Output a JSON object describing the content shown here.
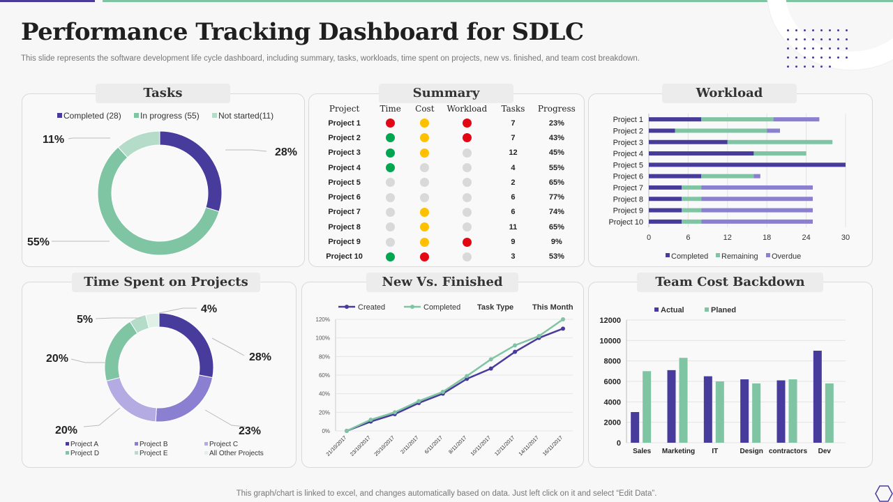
{
  "page": {
    "title": "Performance Tracking Dashboard for SDLC",
    "subtitle": "This slide represents the software development life cycle dashboard, including summary, tasks, workloads, time spent on projects, new vs. finished, and team cost breakdown.",
    "footer": "This graph/chart is linked to excel,  and changes automatically based on data. Just left click on it and select “Edit Data”."
  },
  "colors": {
    "purple": "#473b9b",
    "green": "#7fc4a3",
    "lightgreen": "#b4dcc9",
    "lavender": "#8a7fd0",
    "lilac": "#b3abe2",
    "red": "#e30613",
    "yellow": "#ffc000",
    "darkgreen": "#00a650",
    "grey": "#d9d9d9"
  },
  "chart_data": [
    {
      "id": "tasks",
      "type": "pie",
      "title": "Tasks",
      "legend": [
        "Completed (28)",
        "In progress (55)",
        "Not started(11)"
      ],
      "values": [
        28,
        55,
        11
      ],
      "labels": [
        "28%",
        "55%",
        "11%"
      ]
    },
    {
      "id": "summary",
      "type": "table",
      "title": "Summary",
      "columns": [
        "Project",
        "Time",
        "Cost",
        "Workload",
        "Tasks",
        "Progress"
      ],
      "rows": [
        {
          "project": "Project 1",
          "time": "red",
          "cost": "yellow",
          "workload": "red",
          "tasks": "7",
          "progress": "23%"
        },
        {
          "project": "Project 2",
          "time": "green",
          "cost": "yellow",
          "workload": "red",
          "tasks": "7",
          "progress": "43%"
        },
        {
          "project": "Project 3",
          "time": "green",
          "cost": "yellow",
          "workload": "grey",
          "tasks": "12",
          "progress": "45%"
        },
        {
          "project": "Project 4",
          "time": "green",
          "cost": "grey",
          "workload": "grey",
          "tasks": "4",
          "progress": "55%"
        },
        {
          "project": "Project 5",
          "time": "grey",
          "cost": "grey",
          "workload": "grey",
          "tasks": "2",
          "progress": "65%"
        },
        {
          "project": "Project 6",
          "time": "grey",
          "cost": "grey",
          "workload": "grey",
          "tasks": "6",
          "progress": "77%"
        },
        {
          "project": "Project 7",
          "time": "grey",
          "cost": "yellow",
          "workload": "grey",
          "tasks": "6",
          "progress": "74%"
        },
        {
          "project": "Project 8",
          "time": "grey",
          "cost": "yellow",
          "workload": "grey",
          "tasks": "11",
          "progress": "65%"
        },
        {
          "project": "Project 9",
          "time": "grey",
          "cost": "yellow",
          "workload": "red",
          "tasks": "9",
          "progress": "9%"
        },
        {
          "project": "Project 10",
          "time": "green",
          "cost": "red",
          "workload": "grey",
          "tasks": "3",
          "progress": "53%"
        }
      ]
    },
    {
      "id": "workload",
      "type": "bar",
      "orientation": "horizontal",
      "stacked": true,
      "title": "Workload",
      "categories": [
        "Project 1",
        "Project 2",
        "Project 3",
        "Project 4",
        "Project 5",
        "Project 6",
        "Project 7",
        "Project 8",
        "Project 9",
        "Project 10"
      ],
      "series": [
        {
          "name": "Completed",
          "values": [
            8,
            4,
            12,
            16,
            30,
            8,
            5,
            5,
            5,
            5
          ]
        },
        {
          "name": "Remaining",
          "values": [
            11,
            14,
            16,
            8,
            0,
            8,
            3,
            3,
            3,
            3
          ]
        },
        {
          "name": "Overdue",
          "values": [
            7,
            2,
            0,
            0,
            0,
            1,
            17,
            17,
            17,
            17
          ]
        }
      ],
      "xlim": [
        0,
        30
      ],
      "xticks": [
        "0",
        "6",
        "12",
        "18",
        "24",
        "30"
      ]
    },
    {
      "id": "time_spent",
      "type": "pie",
      "title": "Time Spent on Projects",
      "legend": [
        "Project A",
        "Project B",
        "Project C",
        "Project D",
        "Project E",
        "All Other Projects"
      ],
      "values": [
        28,
        23,
        20,
        20,
        5,
        4
      ],
      "labels": [
        "28%",
        "23%",
        "20%",
        "20%",
        "5%",
        "4%"
      ]
    },
    {
      "id": "new_vs_finished",
      "type": "line",
      "title": "New Vs. Finished",
      "legend": [
        "Created",
        "Completed"
      ],
      "extra_labels": [
        "Task Type",
        "This Month"
      ],
      "x": [
        "21/10/2017",
        "23/10/2017",
        "25/10/2017",
        "2/11/2017",
        "6/11/2017",
        "8/11/2017",
        "10/11/2017",
        "12/11/2017",
        "14/11/2017",
        "16/11/2017"
      ],
      "series": [
        {
          "name": "Created",
          "values": [
            0,
            10,
            18,
            30,
            40,
            56,
            67,
            85,
            100,
            110
          ]
        },
        {
          "name": "Completed",
          "values": [
            0,
            12,
            20,
            32,
            42,
            59,
            77,
            92,
            102,
            120
          ]
        }
      ],
      "ylim": [
        0,
        120
      ],
      "yticks": [
        "0%",
        "20%",
        "40%",
        "60%",
        "80%",
        "100%",
        "120%"
      ]
    },
    {
      "id": "team_cost",
      "type": "bar",
      "title": "Team Cost Backdown",
      "categories": [
        "Sales",
        "Marketing",
        "IT",
        "Design",
        "contractors",
        "Dev"
      ],
      "series": [
        {
          "name": "Actual",
          "values": [
            3000,
            7100,
            6500,
            6200,
            6100,
            9000
          ]
        },
        {
          "name": "Planed",
          "values": [
            7000,
            8300,
            6000,
            5800,
            6200,
            5800
          ]
        }
      ],
      "ylim": [
        0,
        12000
      ],
      "yticks": [
        "0",
        "2000",
        "4000",
        "6000",
        "8000",
        "10000",
        "12000"
      ]
    }
  ]
}
